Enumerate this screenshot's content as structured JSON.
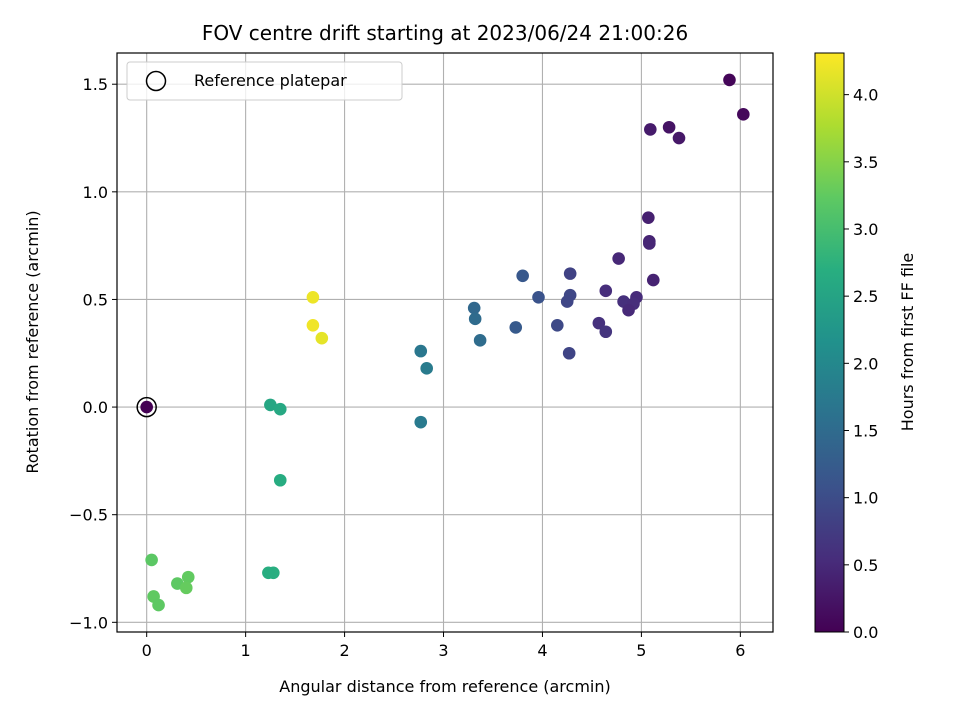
{
  "chart_data": {
    "type": "scatter",
    "title": "FOV centre drift starting at 2023/06/24 21:00:26",
    "xlabel": "Angular distance from reference (arcmin)",
    "ylabel": "Rotation from reference (arcmin)",
    "colorbar_label": "Hours from first FF file",
    "xlim": [
      -0.3,
      6.33
    ],
    "ylim": [
      -1.045,
      1.645
    ],
    "clim": [
      0.0,
      4.31
    ],
    "xticks": [
      0,
      1,
      2,
      3,
      4,
      5,
      6
    ],
    "xtick_labels": [
      "0",
      "1",
      "2",
      "3",
      "4",
      "5",
      "6"
    ],
    "yticks": [
      -1.0,
      -0.5,
      0.0,
      0.5,
      1.0,
      1.5
    ],
    "ytick_labels": [
      "−1.0",
      "−0.5",
      "0.0",
      "0.5",
      "1.0",
      "1.5"
    ],
    "cticks": [
      0.0,
      0.5,
      1.0,
      1.5,
      2.0,
      2.5,
      3.0,
      3.5,
      4.0
    ],
    "ctick_labels": [
      "0.0",
      "0.5",
      "1.0",
      "1.5",
      "2.0",
      "2.5",
      "3.0",
      "3.5",
      "4.0"
    ],
    "colormap": "viridis",
    "grid": true,
    "legend": {
      "location": "upper-left",
      "entries": [
        "Reference platepar"
      ]
    },
    "reference_point": {
      "x": 0.0,
      "y": 0.0
    },
    "points": [
      {
        "x": 0.0,
        "y": 0.0,
        "c": 0.0
      },
      {
        "x": 5.89,
        "y": 1.52,
        "c": 0.05
      },
      {
        "x": 6.03,
        "y": 1.36,
        "c": 0.1
      },
      {
        "x": 5.28,
        "y": 1.3,
        "c": 0.22
      },
      {
        "x": 5.09,
        "y": 1.29,
        "c": 0.32
      },
      {
        "x": 5.38,
        "y": 1.25,
        "c": 0.28
      },
      {
        "x": 5.07,
        "y": 0.88,
        "c": 0.38
      },
      {
        "x": 5.08,
        "y": 0.77,
        "c": 0.42
      },
      {
        "x": 5.08,
        "y": 0.76,
        "c": 0.45
      },
      {
        "x": 4.77,
        "y": 0.69,
        "c": 0.48
      },
      {
        "x": 5.12,
        "y": 0.59,
        "c": 0.42
      },
      {
        "x": 4.64,
        "y": 0.54,
        "c": 0.55
      },
      {
        "x": 4.95,
        "y": 0.51,
        "c": 0.52
      },
      {
        "x": 4.82,
        "y": 0.49,
        "c": 0.58
      },
      {
        "x": 4.92,
        "y": 0.48,
        "c": 0.55
      },
      {
        "x": 4.87,
        "y": 0.45,
        "c": 0.5
      },
      {
        "x": 4.57,
        "y": 0.39,
        "c": 0.6
      },
      {
        "x": 4.64,
        "y": 0.35,
        "c": 0.65
      },
      {
        "x": 4.28,
        "y": 0.62,
        "c": 0.85
      },
      {
        "x": 4.28,
        "y": 0.52,
        "c": 0.92
      },
      {
        "x": 4.25,
        "y": 0.49,
        "c": 0.9
      },
      {
        "x": 4.15,
        "y": 0.38,
        "c": 0.95
      },
      {
        "x": 4.27,
        "y": 0.25,
        "c": 0.88
      },
      {
        "x": 3.96,
        "y": 0.51,
        "c": 1.1
      },
      {
        "x": 3.8,
        "y": 0.61,
        "c": 1.18
      },
      {
        "x": 3.73,
        "y": 0.37,
        "c": 1.22
      },
      {
        "x": 3.31,
        "y": 0.46,
        "c": 1.45
      },
      {
        "x": 3.32,
        "y": 0.41,
        "c": 1.5
      },
      {
        "x": 3.37,
        "y": 0.31,
        "c": 1.52
      },
      {
        "x": 2.77,
        "y": 0.26,
        "c": 1.7
      },
      {
        "x": 2.83,
        "y": 0.18,
        "c": 1.78
      },
      {
        "x": 2.77,
        "y": -0.07,
        "c": 1.75
      },
      {
        "x": 1.25,
        "y": 0.01,
        "c": 2.55
      },
      {
        "x": 1.35,
        "y": -0.01,
        "c": 2.58
      },
      {
        "x": 1.35,
        "y": -0.34,
        "c": 2.65
      },
      {
        "x": 1.28,
        "y": -0.77,
        "c": 2.7
      },
      {
        "x": 1.23,
        "y": -0.77,
        "c": 2.68
      },
      {
        "x": 0.05,
        "y": -0.71,
        "c": 3.2
      },
      {
        "x": 0.42,
        "y": -0.79,
        "c": 3.25
      },
      {
        "x": 0.31,
        "y": -0.82,
        "c": 3.22
      },
      {
        "x": 0.4,
        "y": -0.84,
        "c": 3.28
      },
      {
        "x": 0.07,
        "y": -0.88,
        "c": 3.24
      },
      {
        "x": 0.12,
        "y": -0.92,
        "c": 3.22
      },
      {
        "x": 1.68,
        "y": 0.51,
        "c": 4.2
      },
      {
        "x": 1.68,
        "y": 0.38,
        "c": 4.22
      },
      {
        "x": 1.77,
        "y": 0.32,
        "c": 4.15
      }
    ]
  }
}
